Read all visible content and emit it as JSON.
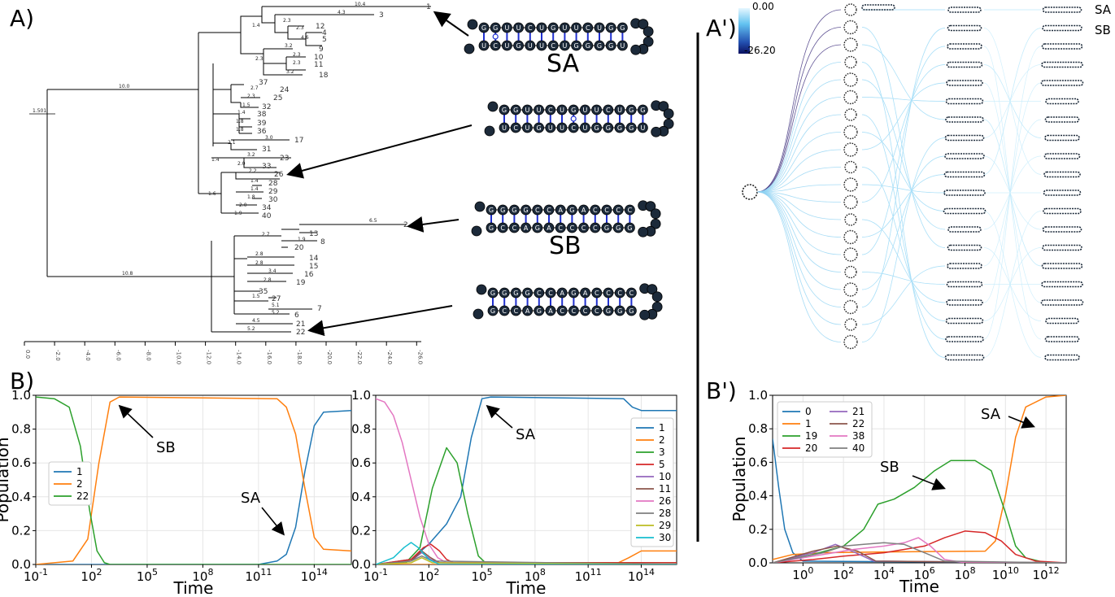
{
  "panel_labels": {
    "a": "A)",
    "a_prime": "A')",
    "b": "B)",
    "b_prime": "B')"
  },
  "structure_labels": {
    "sa": "SA",
    "sb": "SB"
  },
  "colorbar": {
    "max": "0.00",
    "min": "-26.20"
  },
  "tree_root_label": "1.501",
  "tree_axis_ticks": [
    "0.0",
    "-2.0",
    "-4.0",
    "-6.0",
    "-8.0",
    "-10.0",
    "-12.0",
    "-14.0",
    "-16.0",
    "-18.0",
    "-20.0",
    "-22.0",
    "-24.0",
    "-26.0"
  ],
  "hairpin_seq_sa": [
    "G",
    "G",
    "U",
    "U",
    "C",
    "U",
    "G",
    "U",
    "U",
    "C",
    "U",
    "G",
    "G"
  ],
  "hairpin_seq_sb": [
    "G",
    "G",
    "G",
    "G",
    "C",
    "C",
    "A",
    "G",
    "A",
    "C",
    "C",
    "C",
    "C"
  ],
  "colors": {
    "blue": "#1f77b4",
    "orange": "#ff7f0e",
    "green": "#2ca02c",
    "red": "#d62728",
    "purple": "#9467bd",
    "brown": "#8c564b",
    "pink": "#e377c2",
    "gray": "#7f7f7f",
    "olive": "#bcbd22",
    "cyan": "#17becf"
  },
  "chart_data": [
    {
      "type": "line",
      "id": "B-left",
      "xlabel": "Time",
      "ylabel": "Population",
      "xscale": "log10",
      "xlim": [
        -1,
        16
      ],
      "ylim": [
        0,
        1
      ],
      "xticks": [
        {
          "exp": -1,
          "label": "10^-1"
        },
        {
          "exp": 2,
          "label": "10^2"
        },
        {
          "exp": 5,
          "label": "10^5"
        },
        {
          "exp": 8,
          "label": "10^8"
        },
        {
          "exp": 11,
          "label": "10^11"
        },
        {
          "exp": 14,
          "label": "10^14"
        }
      ],
      "yticks": [
        "0.0",
        "0.2",
        "0.4",
        "0.6",
        "0.8",
        "1.0"
      ],
      "legend_loc": "center-left",
      "annotations": [
        {
          "text": "SB"
        },
        {
          "text": "SA"
        }
      ],
      "series": [
        {
          "name": "1",
          "color": "#1f77b4",
          "points": [
            [
              -1,
              0
            ],
            [
              11,
              0
            ],
            [
              12,
              0.02
            ],
            [
              12.5,
              0.06
            ],
            [
              13,
              0.22
            ],
            [
              13.5,
              0.55
            ],
            [
              14,
              0.82
            ],
            [
              14.5,
              0.9
            ],
            [
              16,
              0.91
            ]
          ]
        },
        {
          "name": "2",
          "color": "#ff7f0e",
          "points": [
            [
              -1,
              0
            ],
            [
              1,
              0.02
            ],
            [
              1.8,
              0.15
            ],
            [
              2.4,
              0.6
            ],
            [
              3,
              0.96
            ],
            [
              3.5,
              0.99
            ],
            [
              12,
              0.98
            ],
            [
              12.5,
              0.93
            ],
            [
              13,
              0.77
            ],
            [
              13.5,
              0.45
            ],
            [
              14,
              0.16
            ],
            [
              14.5,
              0.09
            ],
            [
              16,
              0.08
            ]
          ]
        },
        {
          "name": "22",
          "color": "#2ca02c",
          "points": [
            [
              -1,
              0.99
            ],
            [
              0,
              0.98
            ],
            [
              0.8,
              0.93
            ],
            [
              1.4,
              0.7
            ],
            [
              1.9,
              0.32
            ],
            [
              2.3,
              0.08
            ],
            [
              2.7,
              0.01
            ],
            [
              3,
              0
            ],
            [
              16,
              0
            ]
          ]
        }
      ]
    },
    {
      "type": "line",
      "id": "B-middle",
      "xlabel": "Time",
      "xscale": "log10",
      "xlim": [
        -1,
        16
      ],
      "ylim": [
        0,
        1
      ],
      "xticks": [
        {
          "exp": -1,
          "label": "10^-1"
        },
        {
          "exp": 2,
          "label": "10^2"
        },
        {
          "exp": 5,
          "label": "10^5"
        },
        {
          "exp": 8,
          "label": "10^8"
        },
        {
          "exp": 11,
          "label": "10^11"
        },
        {
          "exp": 14,
          "label": "10^14"
        }
      ],
      "yticks": [
        "0.0",
        "0.2",
        "0.4",
        "0.6",
        "0.8",
        "1.0"
      ],
      "legend_loc": "right",
      "annotations": [
        {
          "text": "SA"
        }
      ],
      "series": [
        {
          "name": "1",
          "color": "#1f77b4",
          "points": [
            [
              -1,
              0
            ],
            [
              1,
              0.03
            ],
            [
              2,
              0.12
            ],
            [
              3,
              0.24
            ],
            [
              3.8,
              0.4
            ],
            [
              4.4,
              0.75
            ],
            [
              5,
              0.98
            ],
            [
              5.5,
              0.99
            ],
            [
              13,
              0.98
            ],
            [
              13.5,
              0.93
            ],
            [
              14,
              0.91
            ],
            [
              16,
              0.91
            ]
          ]
        },
        {
          "name": "2",
          "color": "#ff7f0e",
          "points": [
            [
              -1,
              0
            ],
            [
              12.5,
              0
            ],
            [
              13.3,
              0.04
            ],
            [
              14,
              0.08
            ],
            [
              16,
              0.08
            ]
          ]
        },
        {
          "name": "3",
          "color": "#2ca02c",
          "points": [
            [
              -1,
              0
            ],
            [
              0.7,
              0.01
            ],
            [
              1.5,
              0.1
            ],
            [
              2.2,
              0.45
            ],
            [
              3,
              0.69
            ],
            [
              3.6,
              0.6
            ],
            [
              4.2,
              0.3
            ],
            [
              4.8,
              0.05
            ],
            [
              5.2,
              0.01
            ],
            [
              16,
              0.01
            ]
          ]
        },
        {
          "name": "5",
          "color": "#d62728",
          "points": [
            [
              -1,
              0
            ],
            [
              1,
              0.03
            ],
            [
              1.7,
              0.1
            ],
            [
              2.1,
              0.12
            ],
            [
              2.6,
              0.08
            ],
            [
              3,
              0.03
            ],
            [
              3.4,
              0.01
            ],
            [
              16,
              0.01
            ]
          ]
        },
        {
          "name": "10",
          "color": "#9467bd",
          "points": [
            [
              -1,
              0
            ],
            [
              1,
              0.02
            ],
            [
              1.6,
              0.07
            ],
            [
              2.1,
              0.03
            ],
            [
              2.6,
              0.01
            ],
            [
              16,
              0
            ]
          ]
        },
        {
          "name": "11",
          "color": "#8c564b",
          "points": [
            [
              -1,
              0
            ],
            [
              1,
              0.02
            ],
            [
              1.6,
              0.08
            ],
            [
              2.1,
              0.04
            ],
            [
              2.6,
              0.01
            ],
            [
              16,
              0
            ]
          ]
        },
        {
          "name": "26",
          "color": "#e377c2",
          "points": [
            [
              -1,
              0.98
            ],
            [
              -0.5,
              0.96
            ],
            [
              0,
              0.88
            ],
            [
              0.5,
              0.72
            ],
            [
              1,
              0.5
            ],
            [
              1.5,
              0.28
            ],
            [
              2,
              0.12
            ],
            [
              2.5,
              0.04
            ],
            [
              3,
              0.01
            ],
            [
              16,
              0
            ]
          ]
        },
        {
          "name": "28",
          "color": "#7f7f7f",
          "points": [
            [
              -1,
              0
            ],
            [
              1,
              0.02
            ],
            [
              1.6,
              0.05
            ],
            [
              2.2,
              0.02
            ],
            [
              16,
              0
            ]
          ]
        },
        {
          "name": "29",
          "color": "#bcbd22",
          "points": [
            [
              -1,
              0
            ],
            [
              1,
              0.01
            ],
            [
              1.6,
              0.04
            ],
            [
              2.2,
              0.01
            ],
            [
              16,
              0
            ]
          ]
        },
        {
          "name": "30",
          "color": "#17becf",
          "points": [
            [
              -1,
              0
            ],
            [
              0,
              0.04
            ],
            [
              0.6,
              0.1
            ],
            [
              1,
              0.13
            ],
            [
              1.4,
              0.1
            ],
            [
              2,
              0.03
            ],
            [
              2.6,
              0
            ],
            [
              16,
              0
            ]
          ]
        }
      ]
    },
    {
      "type": "line",
      "id": "B-prime",
      "xlabel": "Time",
      "ylabel": "Population",
      "xscale": "log10",
      "xlim": [
        -1.5,
        13
      ],
      "ylim": [
        0,
        1
      ],
      "xticks": [
        {
          "exp": 0,
          "label": "10^0"
        },
        {
          "exp": 2,
          "label": "10^2"
        },
        {
          "exp": 4,
          "label": "10^4"
        },
        {
          "exp": 6,
          "label": "10^6"
        },
        {
          "exp": 8,
          "label": "10^8"
        },
        {
          "exp": 10,
          "label": "10^10"
        },
        {
          "exp": 12,
          "label": "10^12"
        }
      ],
      "yticks": [
        "0.0",
        "0.2",
        "0.4",
        "0.6",
        "0.8",
        "1.0"
      ],
      "legend_loc": "top-left",
      "annotations": [
        {
          "text": "SB"
        },
        {
          "text": "SA"
        }
      ],
      "series": [
        {
          "name": "0",
          "color": "#1f77b4",
          "points": [
            [
              -1.5,
              0.74
            ],
            [
              -1.2,
              0.45
            ],
            [
              -0.9,
              0.2
            ],
            [
              -0.5,
              0.06
            ],
            [
              0,
              0.01
            ],
            [
              13,
              0
            ]
          ]
        },
        {
          "name": "1",
          "color": "#ff7f0e",
          "points": [
            [
              -1.5,
              0.02
            ],
            [
              -0.5,
              0.05
            ],
            [
              1,
              0.06
            ],
            [
              4,
              0.065
            ],
            [
              9,
              0.07
            ],
            [
              9.5,
              0.13
            ],
            [
              10,
              0.4
            ],
            [
              10.5,
              0.75
            ],
            [
              11,
              0.93
            ],
            [
              12,
              0.99
            ],
            [
              13,
              1
            ]
          ]
        },
        {
          "name": "19",
          "color": "#2ca02c",
          "points": [
            [
              -1.5,
              0
            ],
            [
              0.5,
              0.05
            ],
            [
              2,
              0.1
            ],
            [
              3,
              0.2
            ],
            [
              3.7,
              0.35
            ],
            [
              4.5,
              0.38
            ],
            [
              5.5,
              0.45
            ],
            [
              6.5,
              0.55
            ],
            [
              7.3,
              0.61
            ],
            [
              8.5,
              0.61
            ],
            [
              9.3,
              0.55
            ],
            [
              10,
              0.3
            ],
            [
              10.5,
              0.1
            ],
            [
              11,
              0.03
            ],
            [
              12,
              0
            ],
            [
              13,
              0
            ]
          ]
        },
        {
          "name": "20",
          "color": "#d62728",
          "points": [
            [
              -1.5,
              0
            ],
            [
              0.5,
              0.02
            ],
            [
              2,
              0.04
            ],
            [
              4,
              0.06
            ],
            [
              6,
              0.1
            ],
            [
              7,
              0.15
            ],
            [
              8,
              0.19
            ],
            [
              9,
              0.18
            ],
            [
              9.8,
              0.13
            ],
            [
              10.5,
              0.05
            ],
            [
              11.5,
              0.01
            ],
            [
              13,
              0
            ]
          ]
        },
        {
          "name": "21",
          "color": "#9467bd",
          "points": [
            [
              -1.5,
              0
            ],
            [
              0.5,
              0.06
            ],
            [
              1.6,
              0.11
            ],
            [
              2.6,
              0.06
            ],
            [
              3.5,
              0.01
            ],
            [
              13,
              0
            ]
          ]
        },
        {
          "name": "22",
          "color": "#8c564b",
          "points": [
            [
              -1.5,
              0
            ],
            [
              0.5,
              0.07
            ],
            [
              1.7,
              0.1
            ],
            [
              2.7,
              0.07
            ],
            [
              3.6,
              0.01
            ],
            [
              13,
              0
            ]
          ]
        },
        {
          "name": "38",
          "color": "#e377c2",
          "points": [
            [
              -1.5,
              0
            ],
            [
              1,
              0.05
            ],
            [
              2.5,
              0.08
            ],
            [
              4,
              0.1
            ],
            [
              5,
              0.12
            ],
            [
              5.7,
              0.15
            ],
            [
              6.3,
              0.1
            ],
            [
              7,
              0.02
            ],
            [
              8,
              0
            ],
            [
              13,
              0
            ]
          ]
        },
        {
          "name": "40",
          "color": "#7f7f7f",
          "points": [
            [
              -1.5,
              0
            ],
            [
              1,
              0.06
            ],
            [
              2,
              0.1
            ],
            [
              3,
              0.11
            ],
            [
              4,
              0.12
            ],
            [
              5,
              0.11
            ],
            [
              6,
              0.06
            ],
            [
              7,
              0.01
            ],
            [
              13,
              0
            ]
          ]
        }
      ]
    }
  ]
}
